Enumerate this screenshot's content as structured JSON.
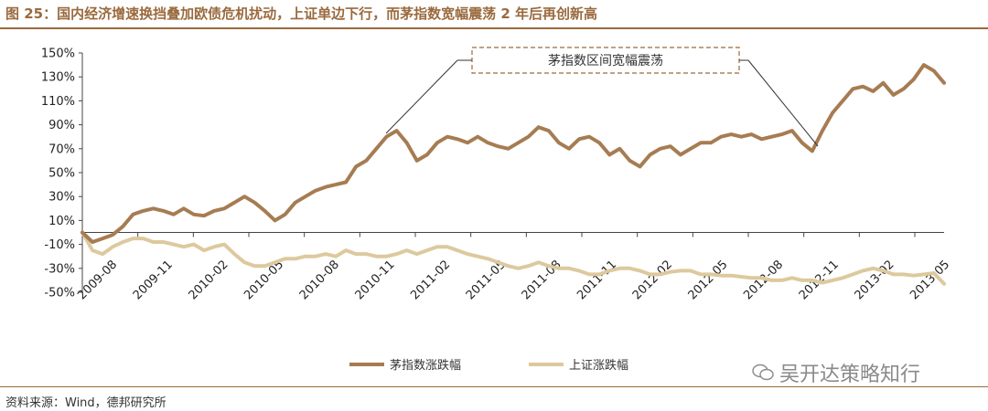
{
  "title": "图 25：国内经济增速换挡叠加欧债危机扰动，上证单边下行，而茅指数宽幅震荡 2 年后再创新高",
  "source": "资料来源：Wind，德邦研究所",
  "watermark": "吴开达策略知行",
  "annotation": "茅指数区间宽幅震荡",
  "colors": {
    "series1": "#a67c52",
    "series2": "#ddc99e",
    "accent": "#9a6a3e"
  },
  "chart_data": {
    "type": "line",
    "ylim": [
      -50,
      150
    ],
    "ytick_values": [
      150,
      130,
      110,
      90,
      70,
      50,
      30,
      10,
      -10,
      -30,
      -50
    ],
    "yticks": [
      "150%",
      "130%",
      "110%",
      "90%",
      "70%",
      "50%",
      "30%",
      "10%",
      "-10%",
      "-30%",
      "-50%"
    ],
    "xticks": [
      "2009-08",
      "2009-11",
      "2010-02",
      "2010-05",
      "2010-08",
      "2010-11",
      "2011-02",
      "2011-05",
      "2011-08",
      "2011-11",
      "2012-02",
      "2012-05",
      "2012-08",
      "2012-11",
      "2013-02",
      "2013-05"
    ],
    "legend_position": "bottom",
    "series": [
      {
        "name": "茅指数涨跌幅",
        "values": [
          0,
          -8,
          -5,
          -2,
          5,
          15,
          18,
          20,
          18,
          15,
          20,
          15,
          14,
          18,
          20,
          25,
          30,
          25,
          18,
          10,
          15,
          25,
          30,
          35,
          38,
          40,
          42,
          55,
          60,
          70,
          80,
          85,
          75,
          60,
          65,
          75,
          80,
          78,
          75,
          80,
          75,
          72,
          70,
          75,
          80,
          88,
          85,
          75,
          70,
          78,
          80,
          75,
          65,
          70,
          60,
          55,
          65,
          70,
          72,
          65,
          70,
          75,
          75,
          80,
          82,
          80,
          82,
          78,
          80,
          82,
          85,
          75,
          68,
          85,
          100,
          110,
          120,
          122,
          118,
          125,
          115,
          120,
          128,
          140,
          135,
          125
        ]
      },
      {
        "name": "上证涨跌幅",
        "values": [
          0,
          -15,
          -18,
          -12,
          -8,
          -5,
          -5,
          -8,
          -8,
          -10,
          -12,
          -10,
          -15,
          -12,
          -10,
          -18,
          -25,
          -28,
          -28,
          -25,
          -22,
          -22,
          -20,
          -20,
          -18,
          -20,
          -15,
          -18,
          -18,
          -20,
          -20,
          -18,
          -15,
          -18,
          -15,
          -12,
          -12,
          -15,
          -18,
          -20,
          -22,
          -25,
          -28,
          -30,
          -28,
          -25,
          -28,
          -30,
          -30,
          -32,
          -35,
          -35,
          -32,
          -30,
          -30,
          -32,
          -35,
          -35,
          -33,
          -32,
          -32,
          -35,
          -35,
          -36,
          -36,
          -37,
          -38,
          -38,
          -40,
          -40,
          -38,
          -40,
          -40,
          -42,
          -40,
          -38,
          -35,
          -32,
          -30,
          -32,
          -35,
          -35,
          -36,
          -35,
          -34,
          -43
        ]
      }
    ]
  }
}
